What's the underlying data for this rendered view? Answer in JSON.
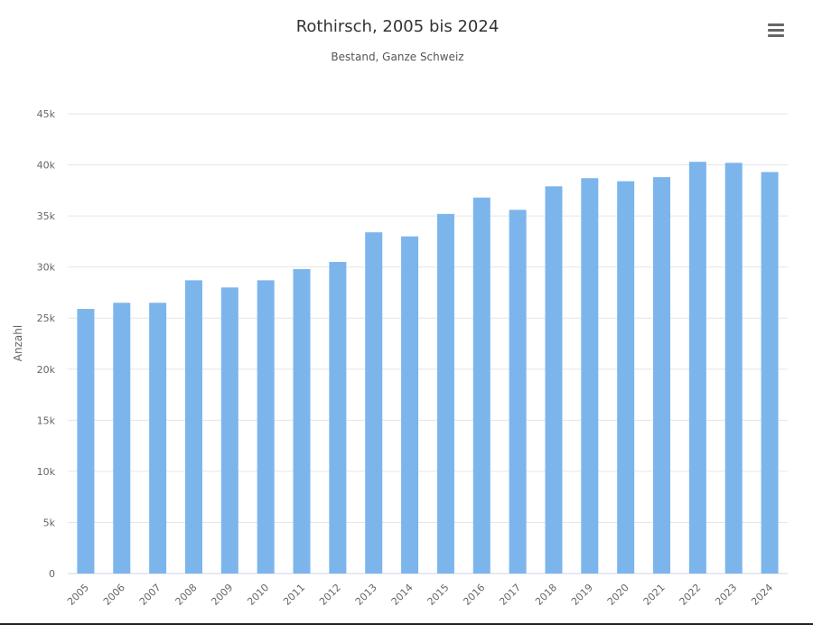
{
  "chart_data": {
    "type": "bar",
    "title": "Rothirsch, 2005 bis 2024",
    "subtitle": "Bestand, Ganze Schweiz",
    "xlabel": "",
    "ylabel": "Anzahl",
    "ylim": [
      0,
      45000
    ],
    "yticks": [
      "0",
      "5k",
      "10k",
      "15k",
      "20k",
      "25k",
      "30k",
      "35k",
      "40k",
      "45k"
    ],
    "grid": true,
    "color": "#7cb5ec",
    "categories": [
      "2005",
      "2006",
      "2007",
      "2008",
      "2009",
      "2010",
      "2011",
      "2012",
      "2013",
      "2014",
      "2015",
      "2016",
      "2017",
      "2018",
      "2019",
      "2020",
      "2021",
      "2022",
      "2023",
      "2024"
    ],
    "values": [
      25900,
      26500,
      26500,
      28700,
      28000,
      28700,
      29800,
      30500,
      33400,
      33000,
      35200,
      36800,
      35600,
      37900,
      38700,
      38400,
      38800,
      40300,
      40200,
      39300
    ]
  },
  "menu": {
    "icon": "hamburger-menu-icon"
  }
}
